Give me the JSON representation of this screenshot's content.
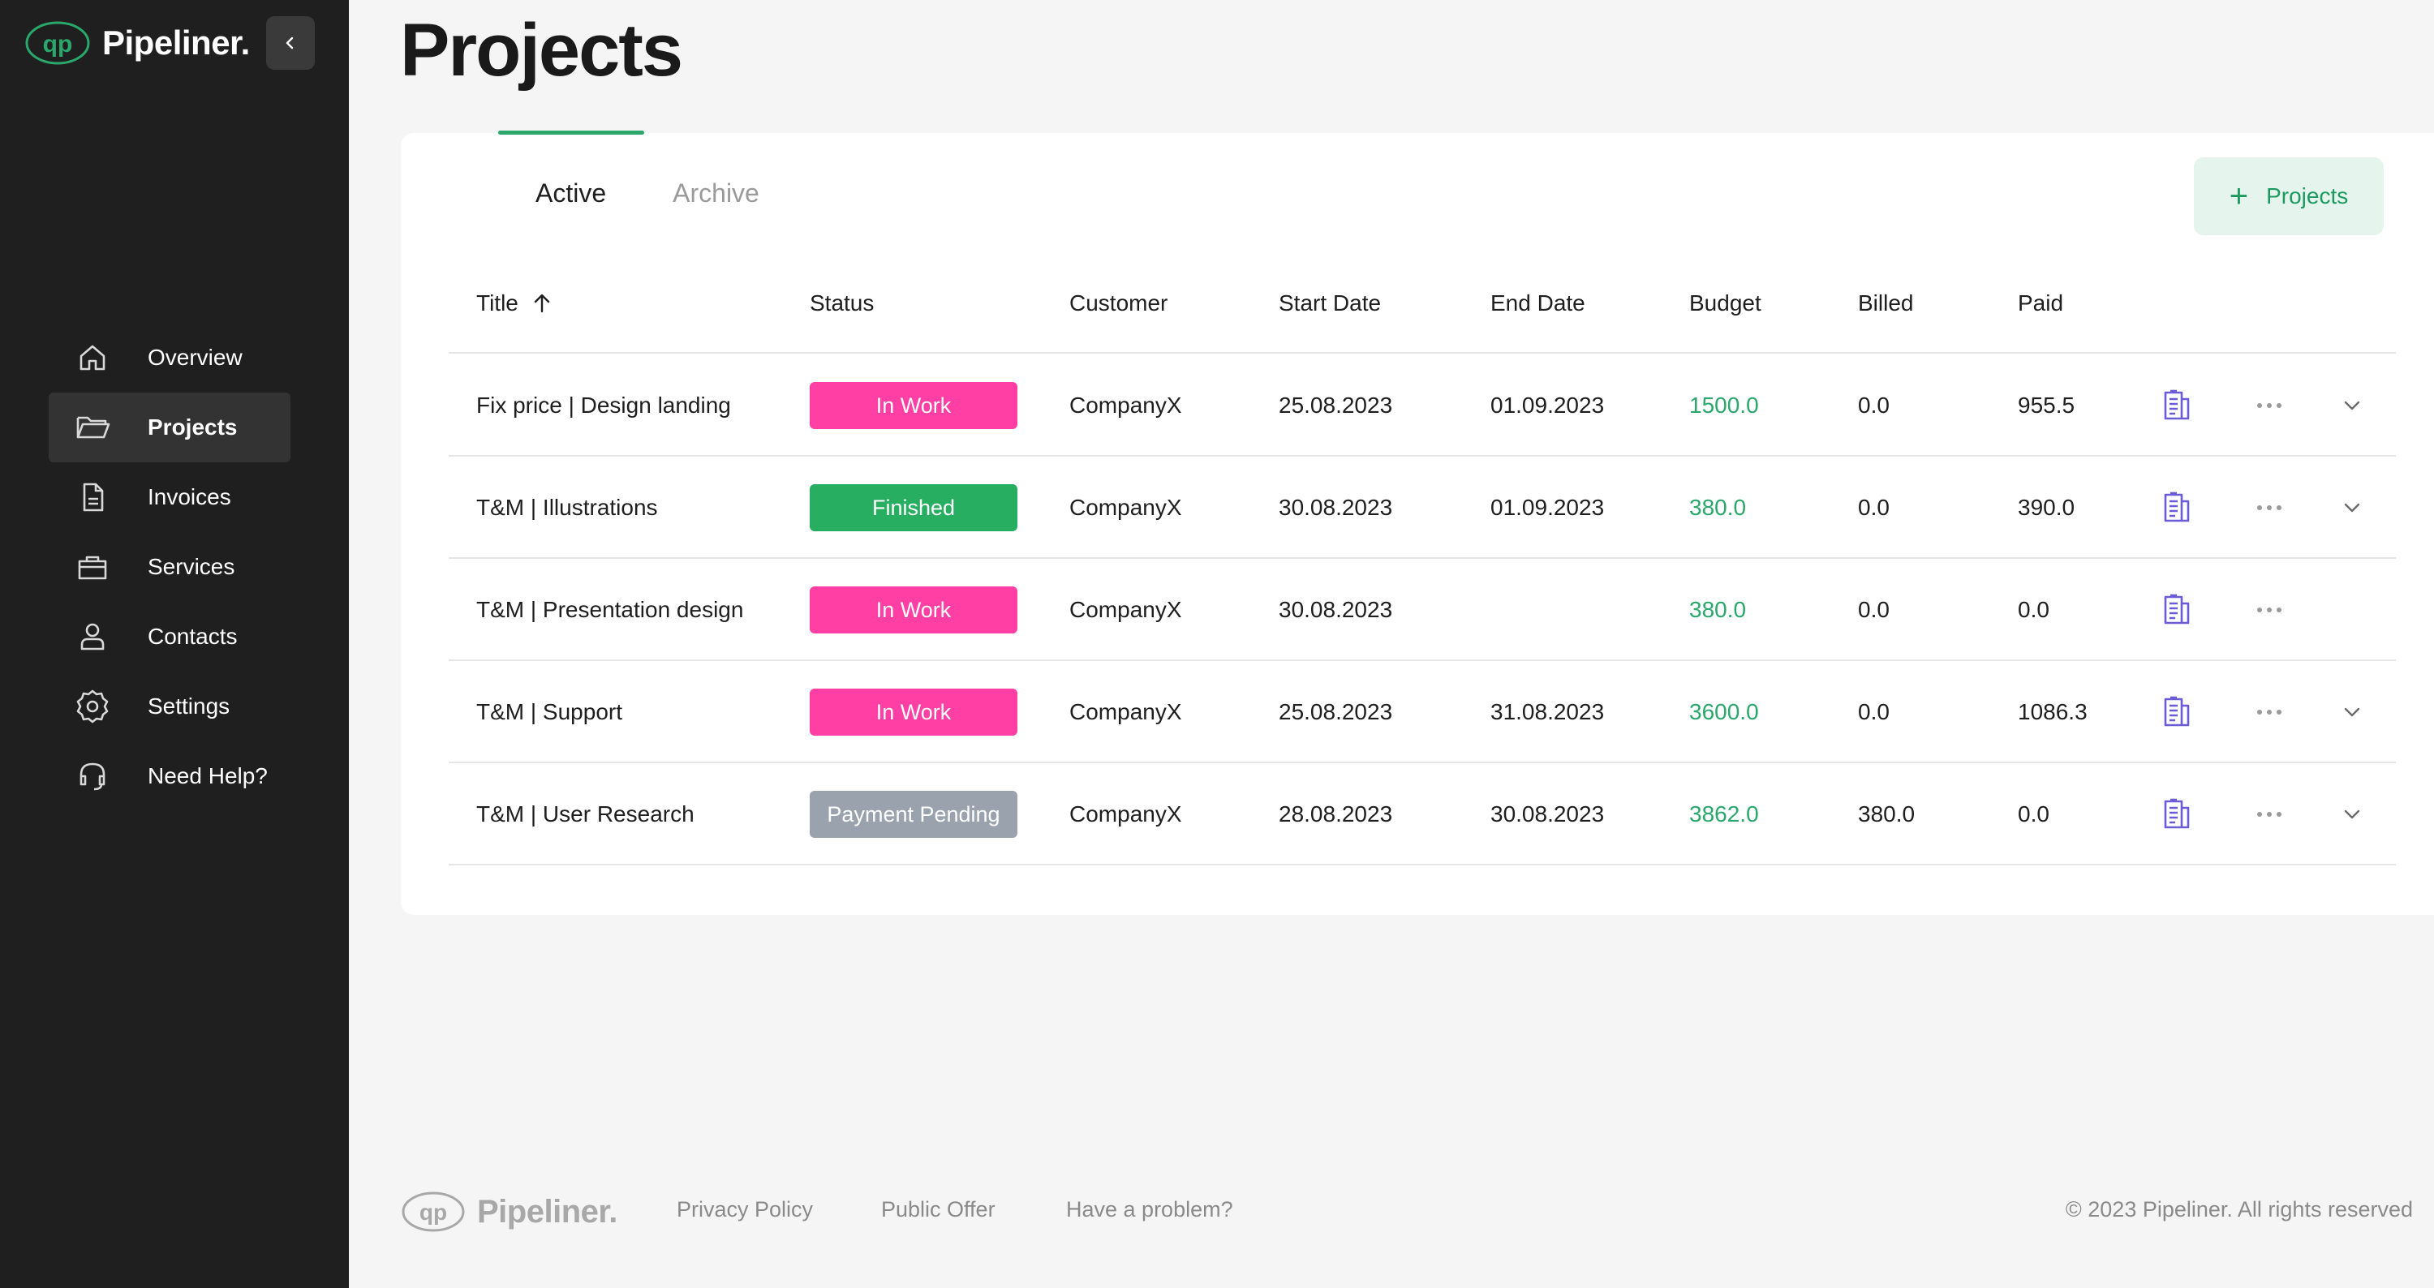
{
  "app": {
    "name": "Pipeliner.",
    "brand_color": "#2aa86b"
  },
  "sidebar": {
    "collapse_icon": "chevron-left-icon",
    "items": [
      {
        "label": "Overview",
        "icon": "home-icon",
        "active": false
      },
      {
        "label": "Projects",
        "icon": "folder-icon",
        "active": true
      },
      {
        "label": "Invoices",
        "icon": "document-icon",
        "active": false
      },
      {
        "label": "Services",
        "icon": "briefcase-icon",
        "active": false
      },
      {
        "label": "Contacts",
        "icon": "user-icon",
        "active": false
      },
      {
        "label": "Settings",
        "icon": "gear-icon",
        "active": false
      },
      {
        "label": "Need Help?",
        "icon": "headset-icon",
        "active": false
      }
    ]
  },
  "main": {
    "title": "Projects",
    "tabs": [
      {
        "label": "Active",
        "active": true
      },
      {
        "label": "Archive",
        "active": false
      }
    ],
    "add_button_label": "Projects",
    "table": {
      "columns": [
        "Title",
        "Status",
        "Customer",
        "Start Date",
        "End Date",
        "Budget",
        "Billed",
        "Paid"
      ],
      "sort_column": "Title",
      "sort_direction": "ascending",
      "rows": [
        {
          "title": "Fix price | Design landing",
          "status": "In Work",
          "status_color": "#ff3fa4",
          "customer": "CompanyX",
          "start": "25.08.2023",
          "end": "01.09.2023",
          "budget": "1500.0",
          "billed": "0.0",
          "paid": "955.5",
          "expandable": true
        },
        {
          "title": "T&M | Illustrations",
          "status": "Finished",
          "status_color": "#27ae60",
          "customer": "CompanyX",
          "start": "30.08.2023",
          "end": "01.09.2023",
          "budget": "380.0",
          "billed": "0.0",
          "paid": "390.0",
          "expandable": true
        },
        {
          "title": "T&M | Presentation design",
          "status": "In Work",
          "status_color": "#ff3fa4",
          "customer": "CompanyX",
          "start": "30.08.2023",
          "end": "",
          "budget": "380.0",
          "billed": "0.0",
          "paid": "0.0",
          "expandable": false
        },
        {
          "title": "T&M | Support",
          "status": "In Work",
          "status_color": "#ff3fa4",
          "customer": "CompanyX",
          "start": "25.08.2023",
          "end": "31.08.2023",
          "budget": "3600.0",
          "billed": "0.0",
          "paid": "1086.3",
          "expandable": true
        },
        {
          "title": "T&M | User Research",
          "status": "Payment Pending",
          "status_color": "#9aa2ad",
          "customer": "CompanyX",
          "start": "28.08.2023",
          "end": "30.08.2023",
          "budget": "3862.0",
          "billed": "380.0",
          "paid": "0.0",
          "expandable": true
        }
      ]
    }
  },
  "footer": {
    "logo_text": "Pipeliner.",
    "links": [
      "Privacy Policy",
      "Public Offer",
      "Have a problem?"
    ],
    "copyright": "© 2023 Pipeliner. All rights reserved"
  }
}
